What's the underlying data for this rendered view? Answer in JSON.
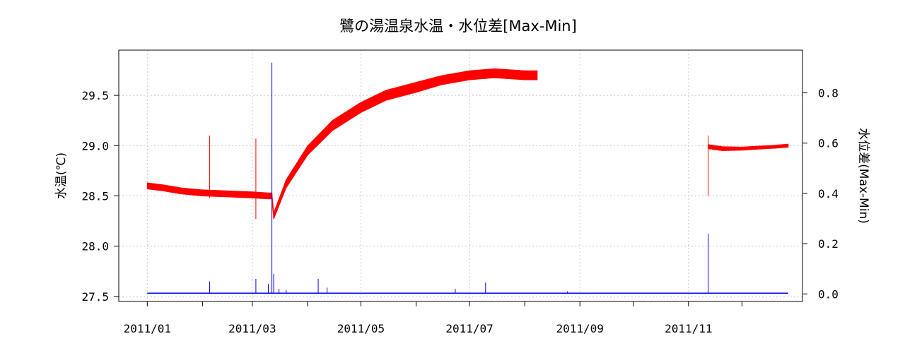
{
  "chart_data": {
    "type": "line",
    "title": "鷺の湯温泉水温・水位差[Max-Min]",
    "ylabel": "水温(℃)",
    "y2label": "水位差(Max-Min)",
    "x_ticks": [
      "2011/01",
      "2011/02",
      "2011/03",
      "2011/04",
      "2011/05",
      "2011/06",
      "2011/07",
      "2011/08",
      "2011/09",
      "2011/10",
      "2011/11",
      "2011/12"
    ],
    "x_tick_labels": [
      "2011/01",
      "",
      "2011/03",
      "",
      "2011/05",
      "",
      "2011/07",
      "",
      "2011/09",
      "",
      "2011/11",
      ""
    ],
    "xlim": [
      "2010-12-16",
      "2012-01-04"
    ],
    "ylim": [
      27.45,
      29.95
    ],
    "y2lim": [
      -0.03,
      0.97
    ],
    "y_ticks": [
      27.5,
      28.0,
      28.5,
      29.0,
      29.5
    ],
    "y_tick_labels": [
      "27.5",
      "28.0",
      "28.5",
      "29.0",
      "29.5"
    ],
    "y2_ticks": [
      0.0,
      0.2,
      0.4,
      0.6,
      0.8
    ],
    "y2_tick_labels": [
      "0.0",
      "0.2",
      "0.4",
      "0.6",
      "0.8"
    ],
    "grid": true,
    "series": [
      {
        "axis": "left",
        "color": "#ff0000",
        "segments": [
          {
            "x": [
              "2011-01-01",
              "2011-01-10",
              "2011-01-20",
              "2011-02-01",
              "2011-02-15",
              "2011-03-01",
              "2011-03-10",
              "2011-03-12",
              "2011-03-13",
              "2011-03-20",
              "2011-04-01",
              "2011-04-15",
              "2011-05-01",
              "2011-05-15",
              "2011-06-01",
              "2011-06-15",
              "2011-07-01",
              "2011-07-15",
              "2011-08-01",
              "2011-08-08"
            ],
            "y": [
              28.6,
              28.58,
              28.55,
              28.53,
              28.52,
              28.51,
              28.5,
              28.5,
              28.3,
              28.62,
              28.95,
              29.2,
              29.38,
              29.5,
              29.58,
              29.65,
              29.7,
              29.72,
              29.7,
              29.7
            ],
            "band": [
              0.06,
              0.06,
              0.06,
              0.06,
              0.06,
              0.06,
              0.06,
              0.06,
              0.06,
              0.08,
              0.09,
              0.1,
              0.1,
              0.1,
              0.1,
              0.09,
              0.09,
              0.09,
              0.09,
              0.09
            ]
          },
          {
            "x": [
              "2011-11-12",
              "2011-11-20",
              "2011-12-01",
              "2011-12-10",
              "2011-12-20",
              "2011-12-27"
            ],
            "y": [
              28.99,
              28.97,
              28.97,
              28.98,
              28.99,
              29.0
            ],
            "band": [
              0.04,
              0.04,
              0.03,
              0.03,
              0.03,
              0.03
            ]
          }
        ],
        "spikes": [
          {
            "x": "2011-02-05",
            "low": 28.48,
            "high": 29.1
          },
          {
            "x": "2011-03-03",
            "low": 28.27,
            "high": 29.07
          },
          {
            "x": "2011-11-12",
            "low": 28.5,
            "high": 29.1
          }
        ]
      },
      {
        "axis": "right",
        "color": "#0000ff",
        "baseline": {
          "x": [
            "2011-01-01",
            "2011-12-27"
          ],
          "y": 0.003
        },
        "spikes": [
          {
            "x": "2011-02-05",
            "y": 0.05
          },
          {
            "x": "2011-03-03",
            "y": 0.06
          },
          {
            "x": "2011-03-10",
            "y": 0.04
          },
          {
            "x": "2011-03-12",
            "y": 0.92
          },
          {
            "x": "2011-03-13",
            "y": 0.08
          },
          {
            "x": "2011-03-16",
            "y": 0.02
          },
          {
            "x": "2011-03-20",
            "y": 0.015
          },
          {
            "x": "2011-04-07",
            "y": 0.06
          },
          {
            "x": "2011-04-12",
            "y": 0.025
          },
          {
            "x": "2011-06-23",
            "y": 0.02
          },
          {
            "x": "2011-07-10",
            "y": 0.045
          },
          {
            "x": "2011-08-25",
            "y": 0.01
          },
          {
            "x": "2011-11-12",
            "y": 0.24
          }
        ]
      }
    ]
  }
}
